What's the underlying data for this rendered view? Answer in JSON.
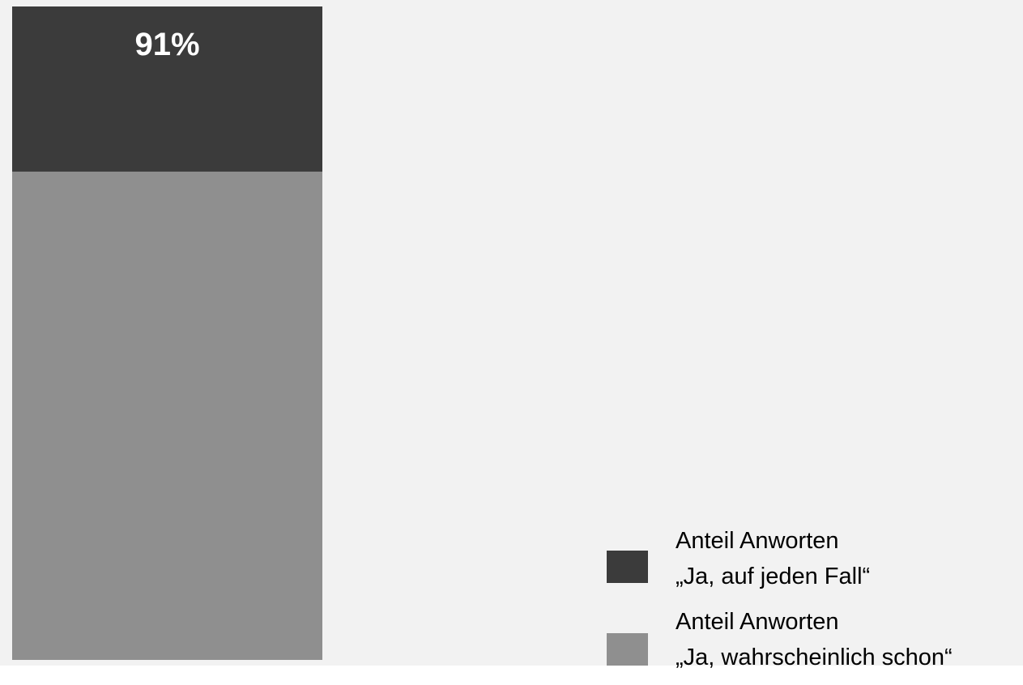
{
  "chart_data": {
    "type": "bar",
    "stacked": true,
    "orientation": "vertical",
    "series": [
      {
        "name": "Anteil Anworten „Ja, wahrscheinlich schon“",
        "value": 68,
        "color": "#8f8f8f"
      },
      {
        "name": "Anteil Anworten „Ja, auf jeden Fall“",
        "value": 23,
        "color": "#3b3b3b"
      }
    ],
    "total_label": "91%",
    "total": 91,
    "ylim": [
      0,
      91
    ],
    "grid": false,
    "legend_position": "bottom-right"
  },
  "legend": [
    {
      "line1": "Anteil Anworten",
      "line2": "„Ja, auf jeden Fall“",
      "color": "#3b3b3b"
    },
    {
      "line1": "Anteil Anworten",
      "line2": "„Ja, wahrscheinlich schon“",
      "color": "#8f8f8f"
    }
  ],
  "colors": {
    "background": "#f2f2f2",
    "top_segment": "#3b3b3b",
    "bottom_segment": "#8f8f8f",
    "label_text": "#ffffff"
  }
}
